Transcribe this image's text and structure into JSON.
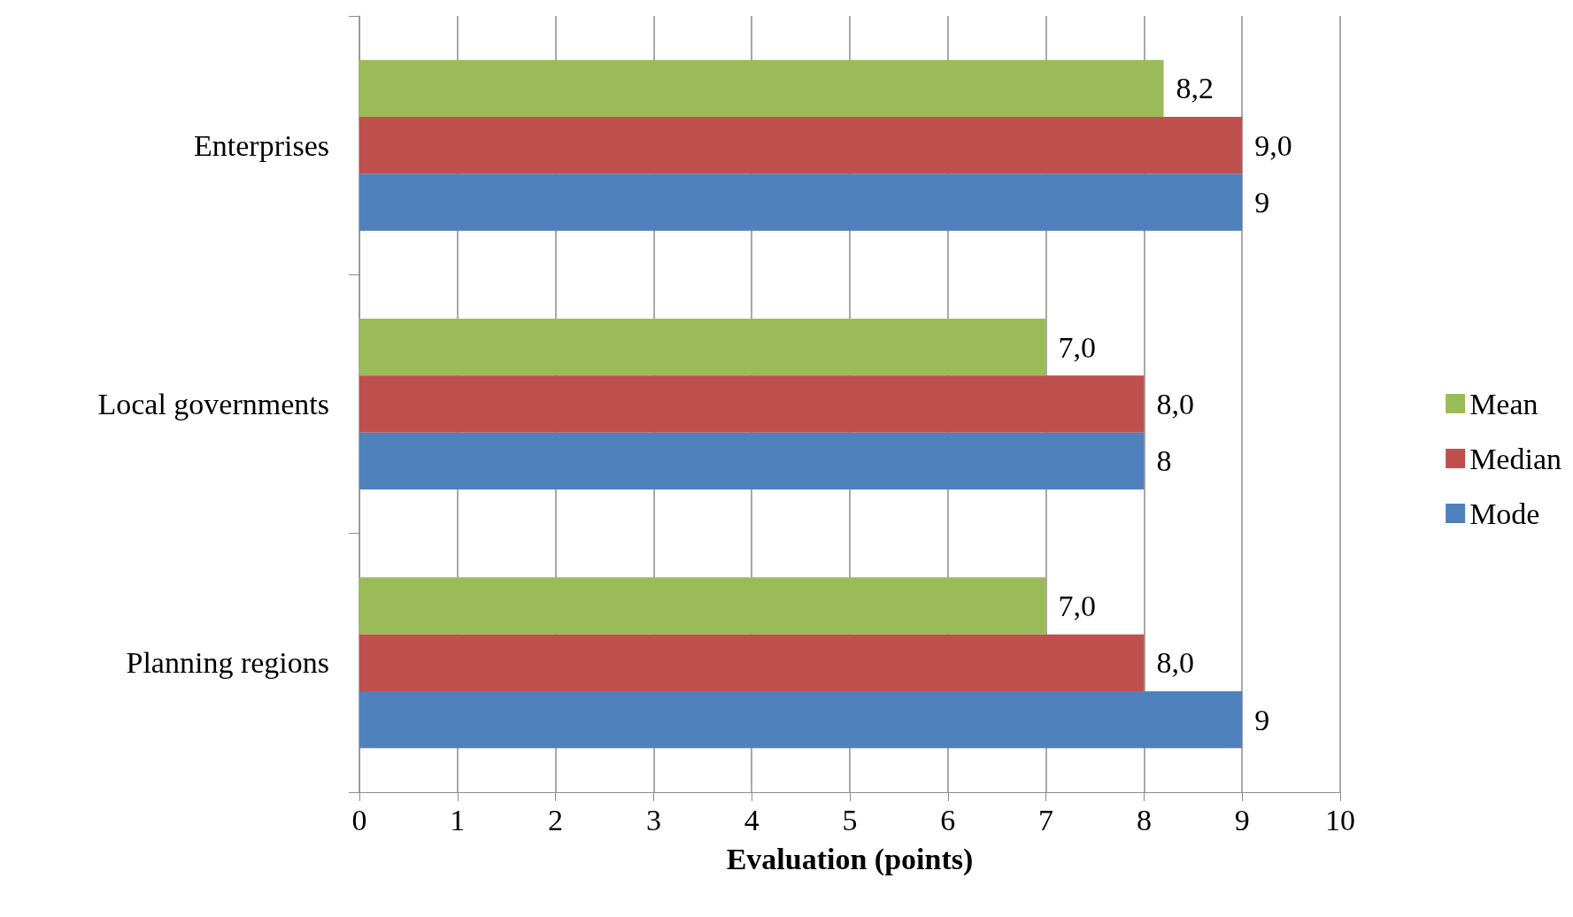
{
  "chart_data": {
    "type": "bar",
    "orientation": "horizontal",
    "xlabel": "Evaluation (points)",
    "categories": [
      "Enterprises",
      "Local governments",
      "Planning regions"
    ],
    "series": [
      {
        "name": "Mean",
        "color": "#9bbb59",
        "values": [
          8.2,
          7.0,
          7.0
        ],
        "value_labels": [
          "8,2",
          "7,0",
          "7,0"
        ]
      },
      {
        "name": "Median",
        "color": "#c0504d",
        "values": [
          9.0,
          8.0,
          8.0
        ],
        "value_labels": [
          "9,0",
          "8,0",
          "8,0"
        ]
      },
      {
        "name": "Mode",
        "color": "#4f81bd",
        "values": [
          9,
          8,
          9
        ],
        "value_labels": [
          "9",
          "8",
          "9"
        ]
      }
    ],
    "xlim": [
      0,
      10
    ],
    "xticks": [
      0,
      1,
      2,
      3,
      4,
      5,
      6,
      7,
      8,
      9,
      10
    ],
    "grid": "x",
    "legend": "right"
  }
}
